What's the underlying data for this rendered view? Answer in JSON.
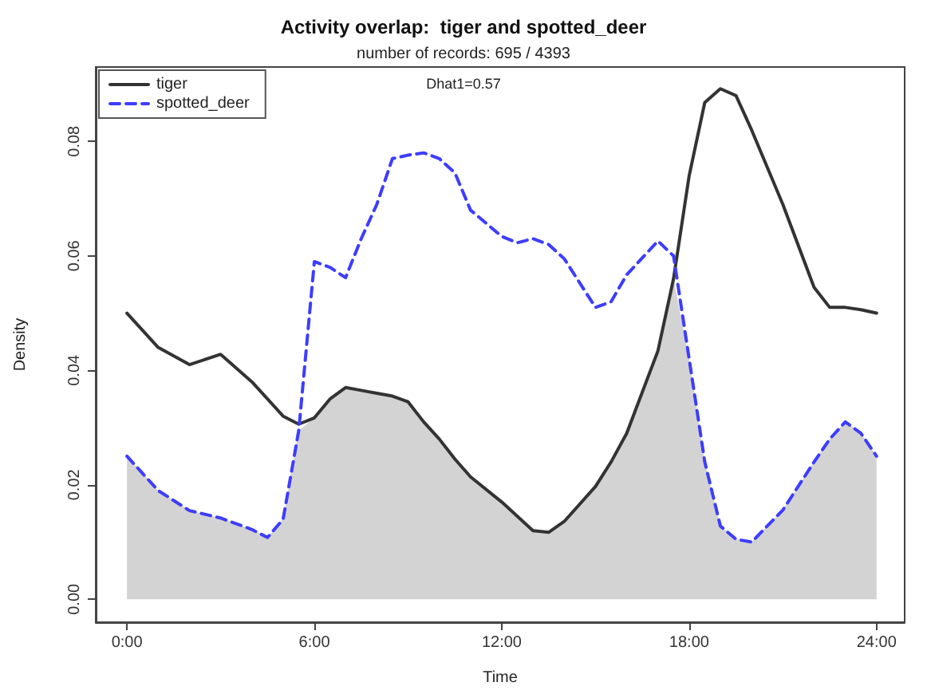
{
  "chart_data": {
    "type": "line",
    "title": "Activity overlap:  tiger and spotted_deer",
    "subtitle": "number of records: 695 / 4393",
    "xlabel": "Time",
    "ylabel": "Density",
    "annotations": [
      "Dhat1=0.57"
    ],
    "x": [
      0,
      1,
      2,
      3,
      4,
      4.5,
      5,
      5.5,
      6,
      6.5,
      7,
      7.5,
      8,
      8.5,
      9,
      9.5,
      10,
      10.5,
      11,
      12,
      12.5,
      13,
      13.5,
      14,
      15,
      15.5,
      16,
      17,
      17.5,
      18,
      18.5,
      19,
      19.5,
      20,
      21,
      22,
      22.5,
      23,
      23.5,
      24
    ],
    "series": [
      {
        "type": "area",
        "color": "#d3d3d3",
        "values": [
          0.025,
          0.019,
          0.0155,
          0.0142,
          0.0122,
          0.0108,
          0.014,
          0.0295,
          0.0317,
          0.035,
          0.037,
          0.0365,
          0.036,
          0.0355,
          0.0345,
          0.031,
          0.028,
          0.0245,
          0.0214,
          0.017,
          0.0145,
          0.012,
          0.0117,
          0.0136,
          0.0197,
          0.024,
          0.029,
          0.0434,
          0.056,
          0.042,
          0.024,
          0.0128,
          0.0105,
          0.01,
          0.0156,
          0.024,
          0.028,
          0.031,
          0.029,
          0.025
        ]
      },
      {
        "name": "tiger",
        "color": "#333333",
        "line_style": "solid",
        "values": [
          0.05,
          0.044,
          0.041,
          0.0428,
          0.038,
          0.035,
          0.032,
          0.0306,
          0.0317,
          0.035,
          0.037,
          0.0365,
          0.036,
          0.0355,
          0.0345,
          0.031,
          0.028,
          0.0245,
          0.0214,
          0.017,
          0.0145,
          0.012,
          0.0117,
          0.0136,
          0.0197,
          0.024,
          0.029,
          0.0434,
          0.056,
          0.074,
          0.0868,
          0.0892,
          0.088,
          0.082,
          0.069,
          0.0545,
          0.051,
          0.051,
          0.0506,
          0.05
        ]
      },
      {
        "name": "spotted_deer",
        "color": "#3d3dff",
        "line_style": "dashed",
        "values": [
          0.025,
          0.019,
          0.0155,
          0.0142,
          0.0122,
          0.0108,
          0.014,
          0.0295,
          0.059,
          0.058,
          0.0562,
          0.063,
          0.069,
          0.077,
          0.0776,
          0.078,
          0.077,
          0.0745,
          0.068,
          0.0634,
          0.0623,
          0.063,
          0.062,
          0.0595,
          0.051,
          0.052,
          0.0567,
          0.0626,
          0.06,
          0.042,
          0.024,
          0.0128,
          0.0105,
          0.01,
          0.0156,
          0.024,
          0.028,
          0.031,
          0.029,
          0.025
        ]
      }
    ],
    "xlim": [
      -1,
      24.9
    ],
    "xticks": [
      {
        "value": 0,
        "label": "0:00"
      },
      {
        "value": 6,
        "label": "6:00"
      },
      {
        "value": 12,
        "label": "12:00"
      },
      {
        "value": 18,
        "label": "18:00"
      },
      {
        "value": 24,
        "label": "24:00"
      }
    ],
    "ylim": [
      -0.004,
      0.093
    ],
    "yticks": [
      {
        "value": 0,
        "label": "0.00"
      },
      {
        "value": 0.02,
        "label": "0.02"
      },
      {
        "value": 0.04,
        "label": "0.04"
      },
      {
        "value": 0.06,
        "label": "0.06"
      },
      {
        "value": 0.08,
        "label": "0.08"
      }
    ],
    "legend": "top left",
    "grid": false,
    "marker": "none"
  }
}
